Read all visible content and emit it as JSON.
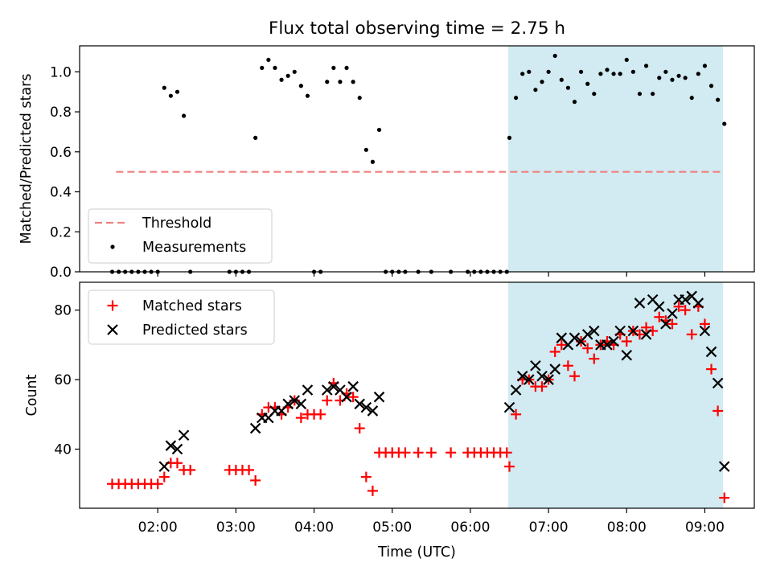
{
  "chart_data": [
    {
      "type": "scatter",
      "title": "Flux total observing time = 2.75 h",
      "ylabel": "Matched/Predicted stars",
      "xlim": [
        "01:00",
        "09:38"
      ],
      "ylim": [
        0.0,
        1.13
      ],
      "yticks": [
        "0.0",
        "0.2",
        "0.4",
        "0.6",
        "0.8",
        "1.0"
      ],
      "shaded_span": [
        "06:29",
        "09:14"
      ],
      "legend_position": "lower-left",
      "threshold": {
        "name": "Threshold",
        "value": 0.5,
        "x_range": [
          "01:28",
          "09:13"
        ],
        "color": "#f08080"
      },
      "series": [
        {
          "name": "Measurements",
          "color": "#000000",
          "points": [
            [
              "01:25",
              0
            ],
            [
              "01:30",
              0
            ],
            [
              "01:35",
              0
            ],
            [
              "01:40",
              0
            ],
            [
              "01:45",
              0
            ],
            [
              "01:50",
              0
            ],
            [
              "01:55",
              0
            ],
            [
              "02:00",
              0
            ],
            [
              "02:05",
              0.92
            ],
            [
              "02:10",
              0.88
            ],
            [
              "02:15",
              0.9
            ],
            [
              "02:20",
              0.78
            ],
            [
              "02:25",
              0
            ],
            [
              "02:55",
              0
            ],
            [
              "03:00",
              0
            ],
            [
              "03:05",
              0
            ],
            [
              "03:10",
              0
            ],
            [
              "03:15",
              0.67
            ],
            [
              "03:20",
              1.02
            ],
            [
              "03:25",
              1.06
            ],
            [
              "03:30",
              1.02
            ],
            [
              "03:35",
              0.96
            ],
            [
              "03:40",
              0.98
            ],
            [
              "03:45",
              1.0
            ],
            [
              "03:50",
              0.93
            ],
            [
              "03:55",
              0.88
            ],
            [
              "04:00",
              0
            ],
            [
              "04:05",
              0
            ],
            [
              "04:10",
              0.95
            ],
            [
              "04:15",
              1.02
            ],
            [
              "04:20",
              0.95
            ],
            [
              "04:25",
              1.02
            ],
            [
              "04:30",
              0.95
            ],
            [
              "04:35",
              0.87
            ],
            [
              "04:40",
              0.61
            ],
            [
              "04:45",
              0.55
            ],
            [
              "04:50",
              0.71
            ],
            [
              "04:55",
              0
            ],
            [
              "05:00",
              0
            ],
            [
              "05:05",
              0
            ],
            [
              "05:10",
              0
            ],
            [
              "05:20",
              0
            ],
            [
              "05:30",
              0
            ],
            [
              "05:45",
              0
            ],
            [
              "05:58",
              0
            ],
            [
              "06:03",
              0
            ],
            [
              "06:08",
              0
            ],
            [
              "06:13",
              0
            ],
            [
              "06:18",
              0
            ],
            [
              "06:23",
              0
            ],
            [
              "06:28",
              0
            ],
            [
              "06:30",
              0.67
            ],
            [
              "06:35",
              0.87
            ],
            [
              "06:40",
              0.99
            ],
            [
              "06:45",
              1.0
            ],
            [
              "06:50",
              0.91
            ],
            [
              "06:55",
              0.95
            ],
            [
              "07:00",
              1.0
            ],
            [
              "07:05",
              1.08
            ],
            [
              "07:10",
              0.96
            ],
            [
              "07:15",
              0.92
            ],
            [
              "07:20",
              0.85
            ],
            [
              "07:25",
              1.0
            ],
            [
              "07:30",
              0.94
            ],
            [
              "07:35",
              0.89
            ],
            [
              "07:40",
              0.99
            ],
            [
              "07:45",
              1.01
            ],
            [
              "07:50",
              0.99
            ],
            [
              "07:55",
              0.99
            ],
            [
              "08:00",
              1.06
            ],
            [
              "08:05",
              1.0
            ],
            [
              "08:10",
              0.89
            ],
            [
              "08:15",
              1.03
            ],
            [
              "08:20",
              0.89
            ],
            [
              "08:25",
              0.97
            ],
            [
              "08:30",
              1.0
            ],
            [
              "08:35",
              0.96
            ],
            [
              "08:40",
              0.98
            ],
            [
              "08:45",
              0.97
            ],
            [
              "08:50",
              0.87
            ],
            [
              "08:55",
              0.99
            ],
            [
              "09:00",
              1.03
            ],
            [
              "09:05",
              0.93
            ],
            [
              "09:10",
              0.86
            ],
            [
              "09:15",
              0.74
            ]
          ]
        }
      ]
    },
    {
      "type": "scatter",
      "xlabel": "Time (UTC)",
      "ylabel": "Count",
      "xlim": [
        "01:00",
        "09:38"
      ],
      "ylim": [
        23,
        88
      ],
      "xticks": [
        "02:00",
        "03:00",
        "04:00",
        "05:00",
        "06:00",
        "07:00",
        "08:00",
        "09:00"
      ],
      "yticks": [
        "40",
        "60",
        "80"
      ],
      "shaded_span": [
        "06:29",
        "09:14"
      ],
      "legend_position": "upper-left",
      "series": [
        {
          "name": "Matched stars",
          "marker": "plus",
          "color": "#ff0000",
          "points": [
            [
              "01:25",
              30
            ],
            [
              "01:30",
              30
            ],
            [
              "01:35",
              30
            ],
            [
              "01:40",
              30
            ],
            [
              "01:45",
              30
            ],
            [
              "01:50",
              30
            ],
            [
              "01:55",
              30
            ],
            [
              "02:00",
              30
            ],
            [
              "02:05",
              32
            ],
            [
              "02:10",
              36
            ],
            [
              "02:15",
              36
            ],
            [
              "02:20",
              34
            ],
            [
              "02:25",
              34
            ],
            [
              "02:55",
              34
            ],
            [
              "03:00",
              34
            ],
            [
              "03:05",
              34
            ],
            [
              "03:10",
              34
            ],
            [
              "03:15",
              31
            ],
            [
              "03:20",
              50
            ],
            [
              "03:25",
              52
            ],
            [
              "03:30",
              52
            ],
            [
              "03:35",
              50
            ],
            [
              "03:40",
              52
            ],
            [
              "03:45",
              54
            ],
            [
              "03:50",
              49
            ],
            [
              "03:55",
              50
            ],
            [
              "04:00",
              50
            ],
            [
              "04:05",
              50
            ],
            [
              "04:10",
              54
            ],
            [
              "04:15",
              59
            ],
            [
              "04:20",
              54
            ],
            [
              "04:25",
              56
            ],
            [
              "04:30",
              55
            ],
            [
              "04:35",
              46
            ],
            [
              "04:40",
              32
            ],
            [
              "04:45",
              28
            ],
            [
              "04:50",
              39
            ],
            [
              "04:55",
              39
            ],
            [
              "05:00",
              39
            ],
            [
              "05:05",
              39
            ],
            [
              "05:10",
              39
            ],
            [
              "05:20",
              39
            ],
            [
              "05:30",
              39
            ],
            [
              "05:45",
              39
            ],
            [
              "05:58",
              39
            ],
            [
              "06:03",
              39
            ],
            [
              "06:08",
              39
            ],
            [
              "06:13",
              39
            ],
            [
              "06:18",
              39
            ],
            [
              "06:23",
              39
            ],
            [
              "06:28",
              39
            ],
            [
              "06:30",
              35
            ],
            [
              "06:35",
              50
            ],
            [
              "06:40",
              60
            ],
            [
              "06:45",
              60
            ],
            [
              "06:50",
              58
            ],
            [
              "06:55",
              58
            ],
            [
              "07:00",
              60
            ],
            [
              "07:05",
              68
            ],
            [
              "07:10",
              70
            ],
            [
              "07:15",
              64
            ],
            [
              "07:20",
              61
            ],
            [
              "07:25",
              71
            ],
            [
              "07:30",
              69
            ],
            [
              "07:35",
              66
            ],
            [
              "07:40",
              70
            ],
            [
              "07:45",
              71
            ],
            [
              "07:50",
              70
            ],
            [
              "07:55",
              73
            ],
            [
              "08:00",
              71
            ],
            [
              "08:05",
              74
            ],
            [
              "08:10",
              73
            ],
            [
              "08:15",
              75
            ],
            [
              "08:20",
              74
            ],
            [
              "08:25",
              78
            ],
            [
              "08:30",
              77
            ],
            [
              "08:35",
              76
            ],
            [
              "08:40",
              81
            ],
            [
              "08:45",
              80
            ],
            [
              "08:50",
              73
            ],
            [
              "08:55",
              81
            ],
            [
              "09:00",
              76
            ],
            [
              "09:05",
              63
            ],
            [
              "09:10",
              51
            ],
            [
              "09:15",
              26
            ]
          ]
        },
        {
          "name": "Predicted stars",
          "marker": "x",
          "color": "#000000",
          "points": [
            [
              "02:05",
              35
            ],
            [
              "02:10",
              41
            ],
            [
              "02:15",
              40
            ],
            [
              "02:20",
              44
            ],
            [
              "03:15",
              46
            ],
            [
              "03:20",
              49
            ],
            [
              "03:25",
              49
            ],
            [
              "03:30",
              51
            ],
            [
              "03:35",
              51
            ],
            [
              "03:40",
              53
            ],
            [
              "03:45",
              54
            ],
            [
              "03:50",
              53
            ],
            [
              "03:55",
              57
            ],
            [
              "04:10",
              57
            ],
            [
              "04:15",
              58
            ],
            [
              "04:20",
              57
            ],
            [
              "04:25",
              55
            ],
            [
              "04:30",
              58
            ],
            [
              "04:35",
              53
            ],
            [
              "04:40",
              52
            ],
            [
              "04:45",
              51
            ],
            [
              "04:50",
              55
            ],
            [
              "06:30",
              52
            ],
            [
              "06:35",
              57
            ],
            [
              "06:40",
              61
            ],
            [
              "06:45",
              60
            ],
            [
              "06:50",
              64
            ],
            [
              "06:55",
              61
            ],
            [
              "07:00",
              60
            ],
            [
              "07:05",
              63
            ],
            [
              "07:10",
              72
            ],
            [
              "07:15",
              70
            ],
            [
              "07:20",
              72
            ],
            [
              "07:25",
              71
            ],
            [
              "07:30",
              73
            ],
            [
              "07:35",
              74
            ],
            [
              "07:40",
              70
            ],
            [
              "07:45",
              70
            ],
            [
              "07:50",
              71
            ],
            [
              "07:55",
              74
            ],
            [
              "08:00",
              67
            ],
            [
              "08:05",
              74
            ],
            [
              "08:10",
              82
            ],
            [
              "08:15",
              73
            ],
            [
              "08:20",
              83
            ],
            [
              "08:25",
              81
            ],
            [
              "08:30",
              76
            ],
            [
              "08:35",
              79
            ],
            [
              "08:40",
              83
            ],
            [
              "08:45",
              83
            ],
            [
              "08:50",
              84
            ],
            [
              "08:55",
              82
            ],
            [
              "09:00",
              74
            ],
            [
              "09:05",
              68
            ],
            [
              "09:10",
              59
            ],
            [
              "09:15",
              35
            ]
          ]
        }
      ]
    }
  ]
}
